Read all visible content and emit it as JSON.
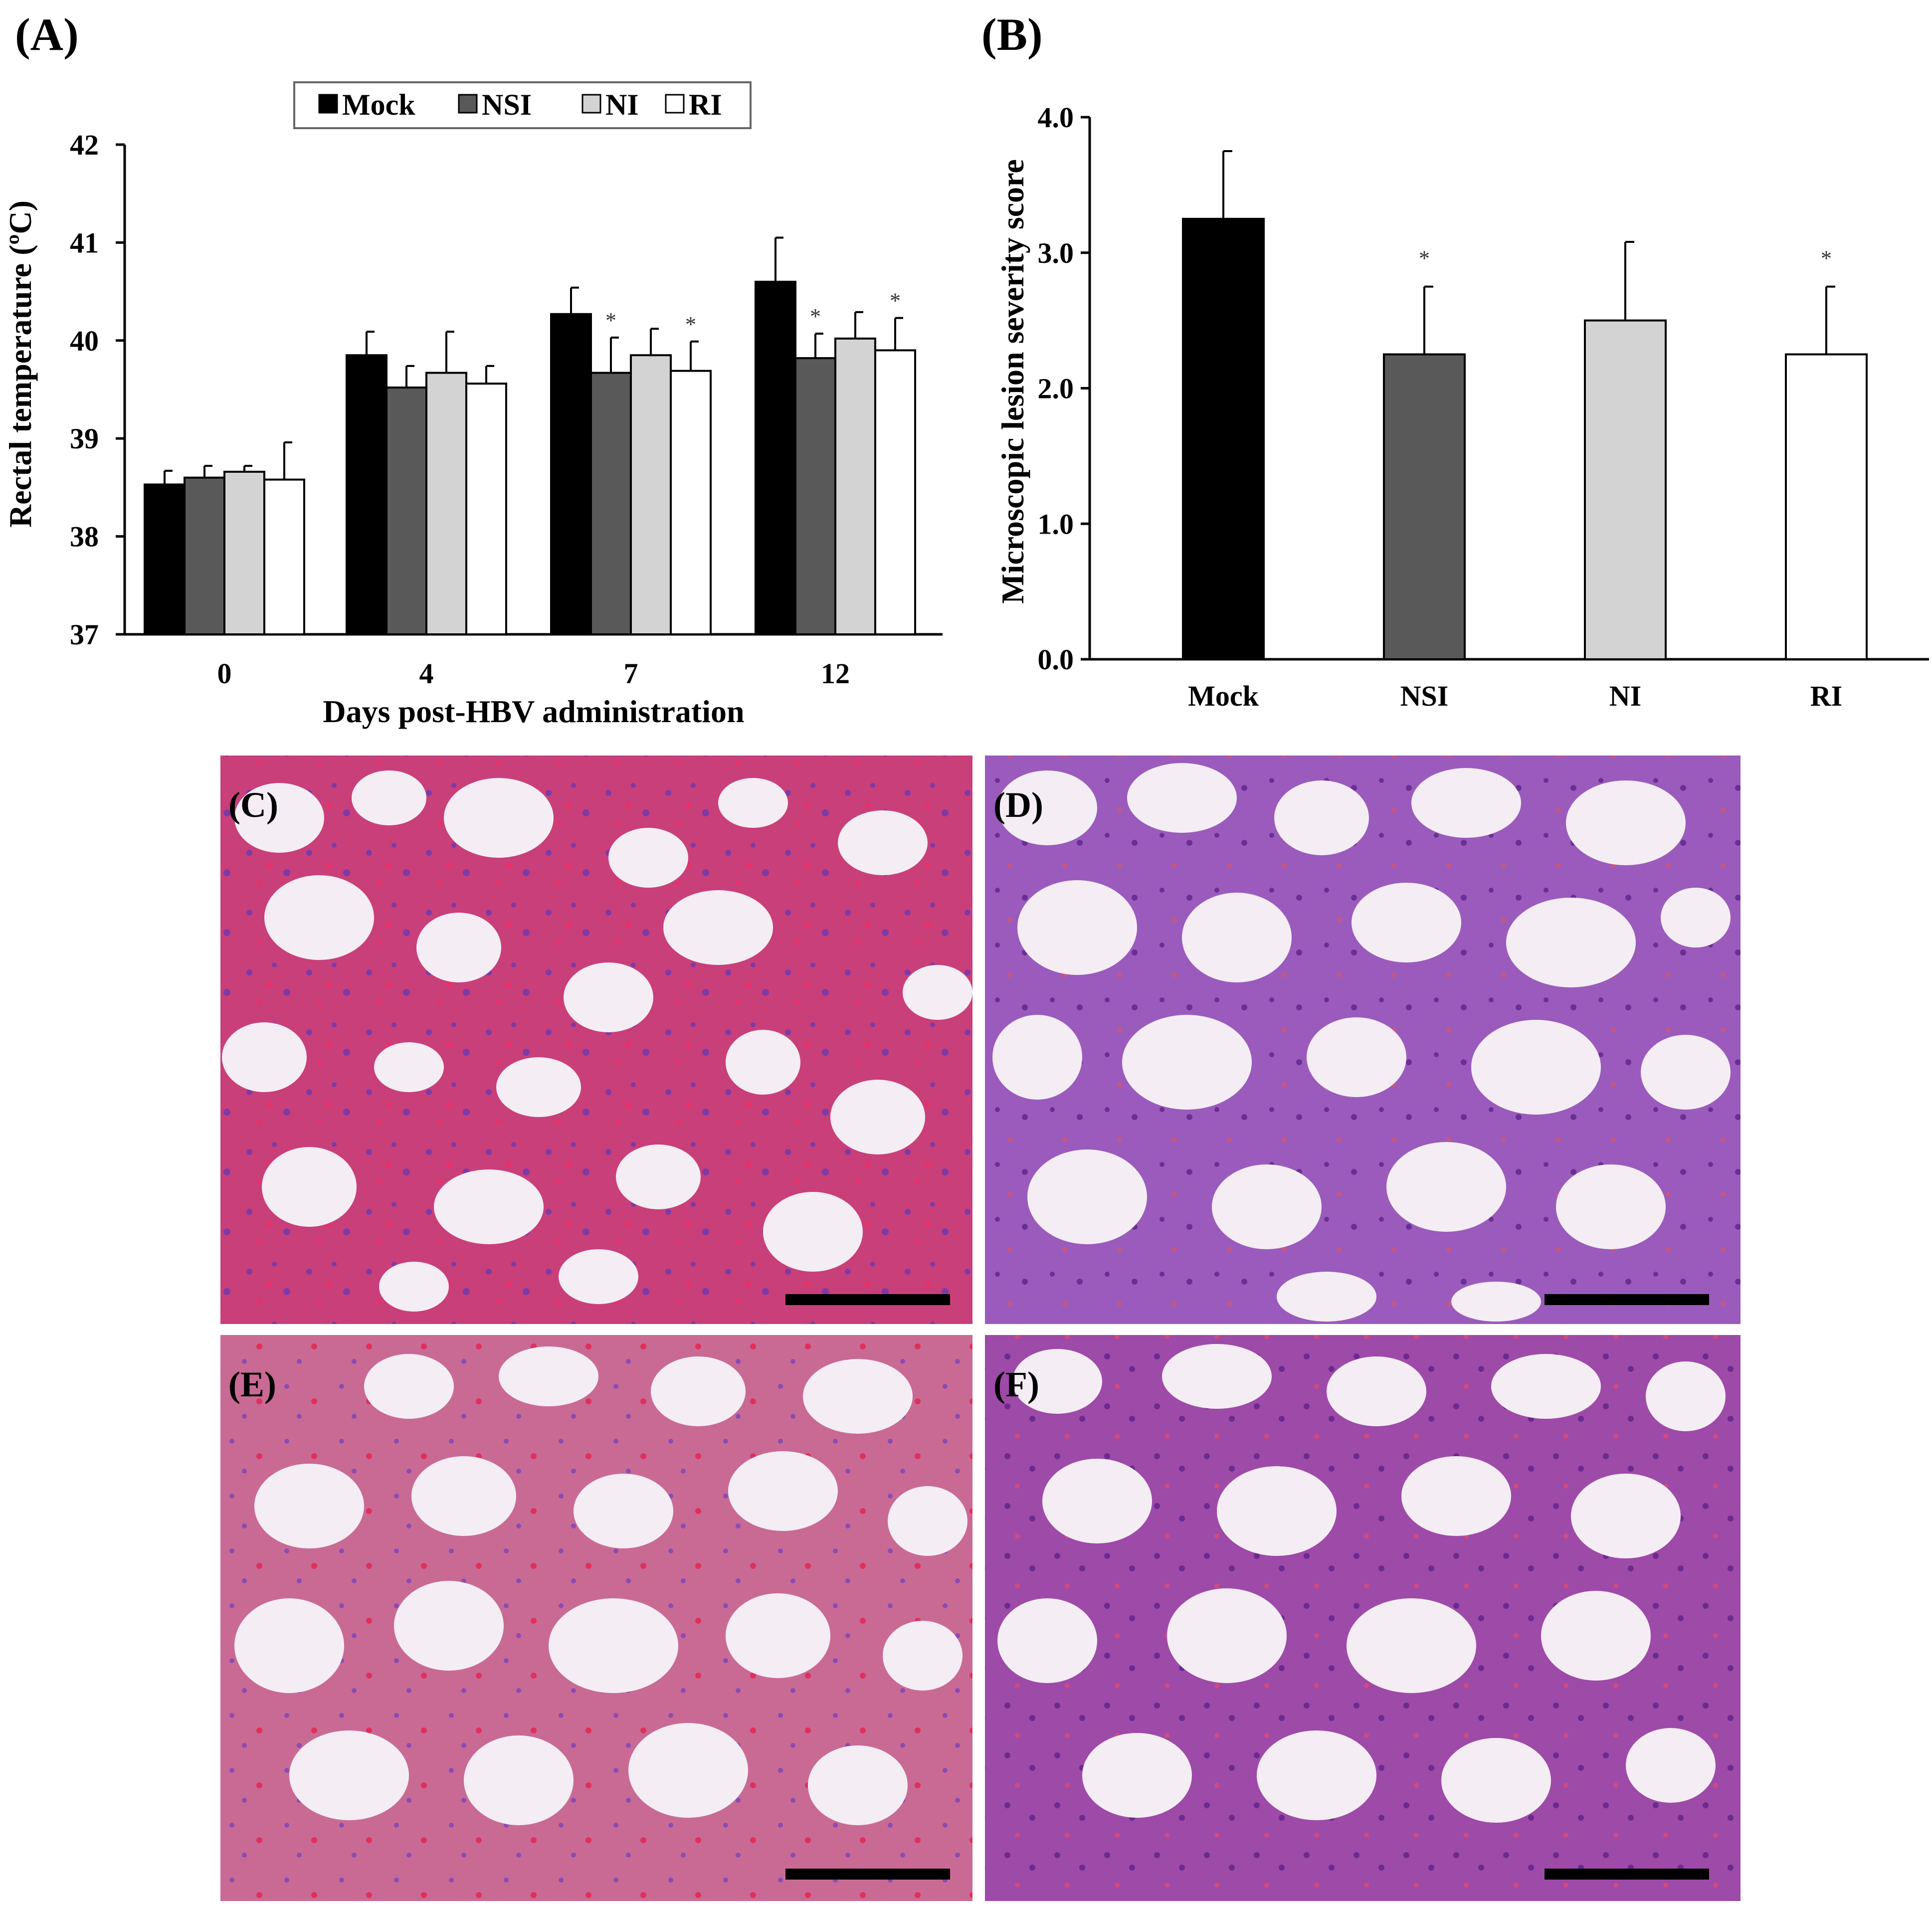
{
  "panels": {
    "A": "(A)",
    "B": "(B)",
    "C": "(C)",
    "D": "(D)",
    "E": "(E)",
    "F": "(F)"
  },
  "colors": {
    "Mock": "#000000",
    "NSI": "#595959",
    "NI": "#d3d3d3",
    "RI": "#ffffff",
    "tissue_pink": "#e8578a",
    "tissue_purple": "#8a4bb3",
    "alveolus": "#f2e9f3",
    "hemorrhage": "#e0305a",
    "scalebar": "#000000"
  },
  "chart_data": [
    {
      "id": "A",
      "type": "bar",
      "xlabel": "Days post-HBV administration",
      "ylabel": "Rectal temperature (ºC)",
      "ylim": [
        37,
        42
      ],
      "yticks": [
        "37",
        "38",
        "39",
        "40",
        "41",
        "42"
      ],
      "categories": [
        "0",
        "4",
        "7",
        "12"
      ],
      "legend_position": "top",
      "series": [
        {
          "name": "Mock",
          "values": [
            38.53,
            39.85,
            40.27,
            40.6
          ],
          "errors": [
            0.14,
            0.24,
            0.27,
            0.45
          ],
          "sig": [
            false,
            false,
            false,
            false
          ]
        },
        {
          "name": "NSI",
          "values": [
            38.6,
            39.52,
            39.67,
            39.82
          ],
          "errors": [
            0.12,
            0.22,
            0.36,
            0.25
          ],
          "sig": [
            false,
            false,
            true,
            true
          ]
        },
        {
          "name": "NI",
          "values": [
            38.66,
            39.67,
            39.85,
            40.02
          ],
          "errors": [
            0.06,
            0.42,
            0.27,
            0.27
          ],
          "sig": [
            false,
            false,
            false,
            false
          ]
        },
        {
          "name": "RI",
          "values": [
            38.58,
            39.56,
            39.69,
            39.9
          ],
          "errors": [
            0.38,
            0.18,
            0.3,
            0.33
          ],
          "sig": [
            false,
            false,
            true,
            true
          ]
        }
      ],
      "sig_mark": "*"
    },
    {
      "id": "B",
      "type": "bar",
      "xlabel": "",
      "ylabel": "Microscopic lesion severity score",
      "ylim": [
        0,
        4
      ],
      "yticks": [
        "0.0",
        "1.0",
        "2.0",
        "3.0",
        "4.0"
      ],
      "categories": [
        "Mock",
        "NSI",
        "NI",
        "RI"
      ],
      "values": [
        3.25,
        2.25,
        2.5,
        2.25
      ],
      "errors": [
        0.5,
        0.5,
        0.58,
        0.5
      ],
      "sig": [
        false,
        true,
        false,
        true
      ],
      "sig_mark": "*"
    }
  ]
}
